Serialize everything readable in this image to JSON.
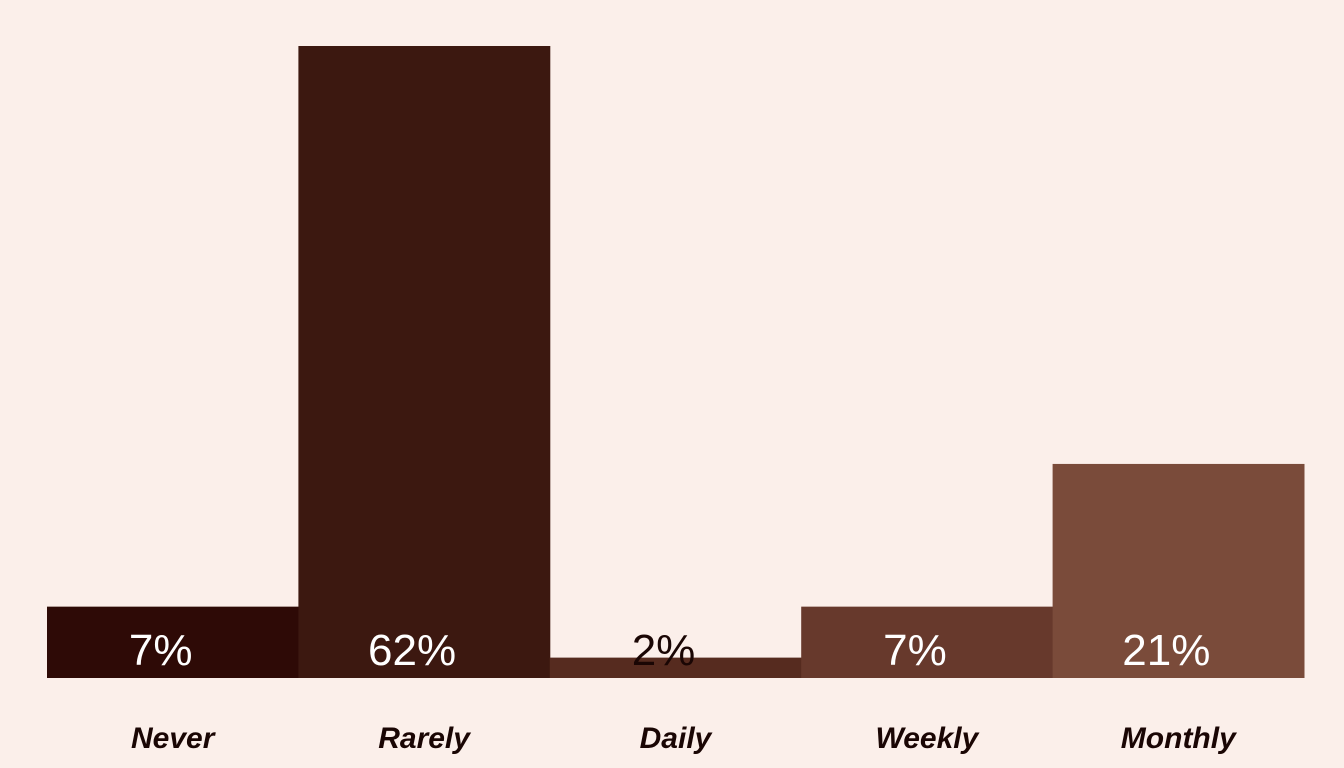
{
  "chart_data": {
    "type": "bar",
    "title": "",
    "xlabel": "",
    "ylabel": "",
    "categories": [
      "Never",
      "Rarely",
      "Daily",
      "Weekly",
      "Monthly"
    ],
    "values": [
      7,
      62,
      2,
      7,
      21
    ],
    "value_labels": [
      "7%",
      "62%",
      "2%",
      "7%",
      "21%"
    ],
    "ylim": [
      0,
      62
    ],
    "unit": "%",
    "grid": false,
    "legend": "none",
    "colors": [
      "#2e0a06",
      "#3c1810",
      "#562b1f",
      "#67392c",
      "#7a4b3a"
    ],
    "label_colors": [
      "#ffffff",
      "#ffffff",
      "#1a0604",
      "#ffffff",
      "#ffffff"
    ],
    "category_label_color": "#1a0604",
    "background": "#fbefea"
  }
}
